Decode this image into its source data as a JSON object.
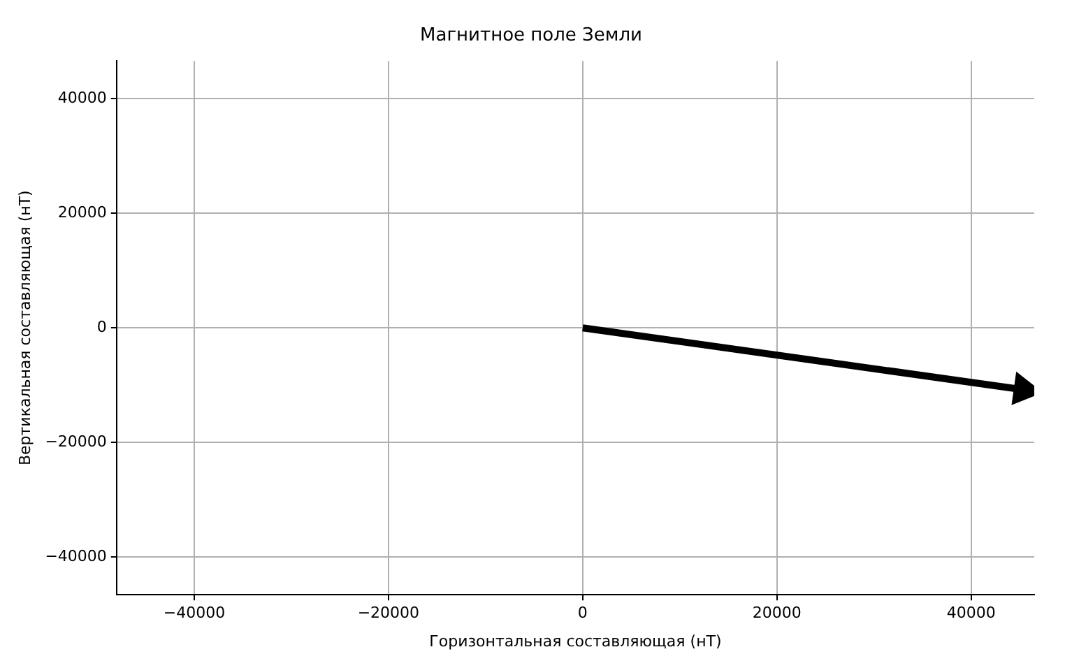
{
  "chart_data": {
    "type": "line",
    "title": "Магнитное поле Земли",
    "xlabel": "Горизонтальная составляющая (нТ)",
    "ylabel": "Вертикальная составляющая (нТ)",
    "x": [
      0,
      45400
    ],
    "series": [
      {
        "color": "#000000",
        "values": [
          0,
          -10800
        ]
      }
    ],
    "xlim": [
      -48000,
      46500
    ],
    "ylim": [
      -46600,
      46600
    ],
    "xticks": [
      {
        "value": -40000,
        "label": "−40000"
      },
      {
        "value": -20000,
        "label": "−20000"
      },
      0,
      20000,
      40000
    ],
    "yticks": [
      {
        "value": -40000,
        "label": "−40000"
      },
      {
        "value": -20000,
        "label": "−20000"
      },
      0,
      20000,
      40000
    ],
    "grid": true,
    "legend": false,
    "line_style": "solid"
  }
}
